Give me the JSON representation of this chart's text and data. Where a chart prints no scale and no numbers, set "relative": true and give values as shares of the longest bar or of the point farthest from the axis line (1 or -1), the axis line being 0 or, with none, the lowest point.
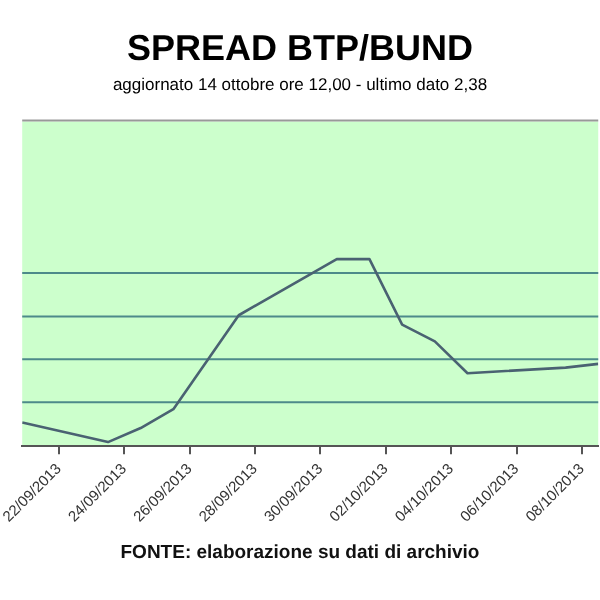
{
  "chart_data": {
    "type": "line",
    "title": "SPREAD BTP/BUND",
    "subtitle": "aggiornato 14 ottobre ore 12,00 - ultimo dato 2,38",
    "relative": true,
    "x": [
      "2013-09-20T21:00",
      "2013-09-23T12:00",
      "2013-09-24T12:00",
      "2013-09-25T12:00",
      "2013-09-27T12:00",
      "2013-09-30T12:00",
      "2013-10-01T12:00",
      "2013-10-02T12:00",
      "2013-10-03T12:00",
      "2013-10-04T12:00",
      "2013-10-07T12:00",
      "2013-10-08T12:00"
    ],
    "values": [
      0.127,
      0.022,
      0.097,
      0.198,
      0.7,
      1,
      1,
      0.65,
      0.56,
      0.39,
      0.42,
      0.44
    ],
    "color": "#4a6272",
    "xlim": [
      "2013-09-20T21:00",
      "2013-10-08T12:00"
    ],
    "xticks": [
      {
        "value": "2013-09-22",
        "label": "22/09/2013"
      },
      {
        "value": "2013-09-24",
        "label": "24/09/2013"
      },
      {
        "value": "2013-09-26",
        "label": "26/09/2013"
      },
      {
        "value": "2013-09-28",
        "label": "28/09/2013"
      },
      {
        "value": "2013-09-30",
        "label": "30/09/2013"
      },
      {
        "value": "2013-10-02",
        "label": "02/10/2013"
      },
      {
        "value": "2013-10-04",
        "label": "04/10/2013"
      },
      {
        "value": "2013-10-06",
        "label": "06/10/2013"
      },
      {
        "value": "2013-10-08",
        "label": "08/10/2013"
      }
    ],
    "ref_lines": [
      {
        "axis": "y",
        "value": 0.235,
        "color": "#4d8a8a"
      },
      {
        "axis": "y",
        "value": 0.465,
        "color": "#4d8a8a"
      },
      {
        "axis": "y",
        "value": 0.693,
        "color": "#4d8a8a"
      },
      {
        "axis": "y",
        "value": 0.926,
        "color": "#4d8a8a"
      }
    ],
    "legend": false,
    "marker": "none",
    "line_style": "solid",
    "annotations": [
      "FONTE: elaborazione su dati di archivio"
    ]
  }
}
